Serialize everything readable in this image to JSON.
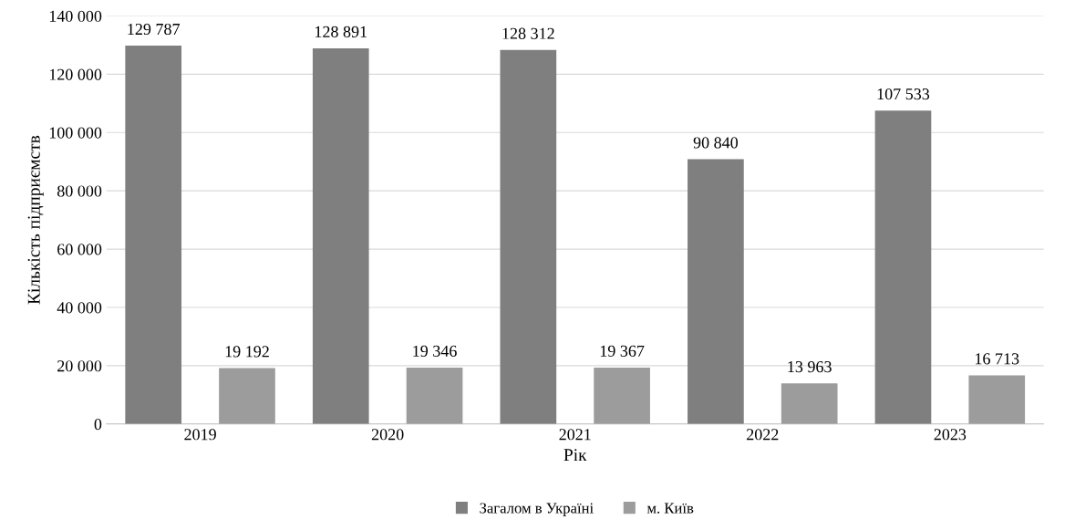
{
  "chart_data": {
    "type": "bar",
    "xlabel": "Рік",
    "ylabel": "Кількість підприємств",
    "categories": [
      "2019",
      "2020",
      "2021",
      "2022",
      "2023"
    ],
    "series": [
      {
        "name": "Загалом в Україні",
        "color": "#7f7f7f",
        "values": [
          129787,
          128891,
          128312,
          90840,
          107533
        ],
        "value_labels": [
          "129 787",
          "128 891",
          "128 312",
          "90 840",
          "107 533"
        ]
      },
      {
        "name": "м. Київ",
        "color": "#9c9c9c",
        "values": [
          19192,
          19346,
          19367,
          13963,
          16713
        ],
        "value_labels": [
          "19 192",
          "19 346",
          "19 367",
          "13 963",
          "16 713"
        ]
      }
    ],
    "ylim": [
      0,
      140000
    ],
    "yticks": [
      {
        "value": 0,
        "label": "0"
      },
      {
        "value": 20000,
        "label": "20 000"
      },
      {
        "value": 40000,
        "label": "40 000"
      },
      {
        "value": 60000,
        "label": "60 000"
      },
      {
        "value": 80000,
        "label": "80 000"
      },
      {
        "value": 100000,
        "label": "100 000"
      },
      {
        "value": 120000,
        "label": "120 000"
      },
      {
        "value": 140000,
        "label": "140 000"
      }
    ],
    "grid": "y",
    "legend": "bottom"
  }
}
